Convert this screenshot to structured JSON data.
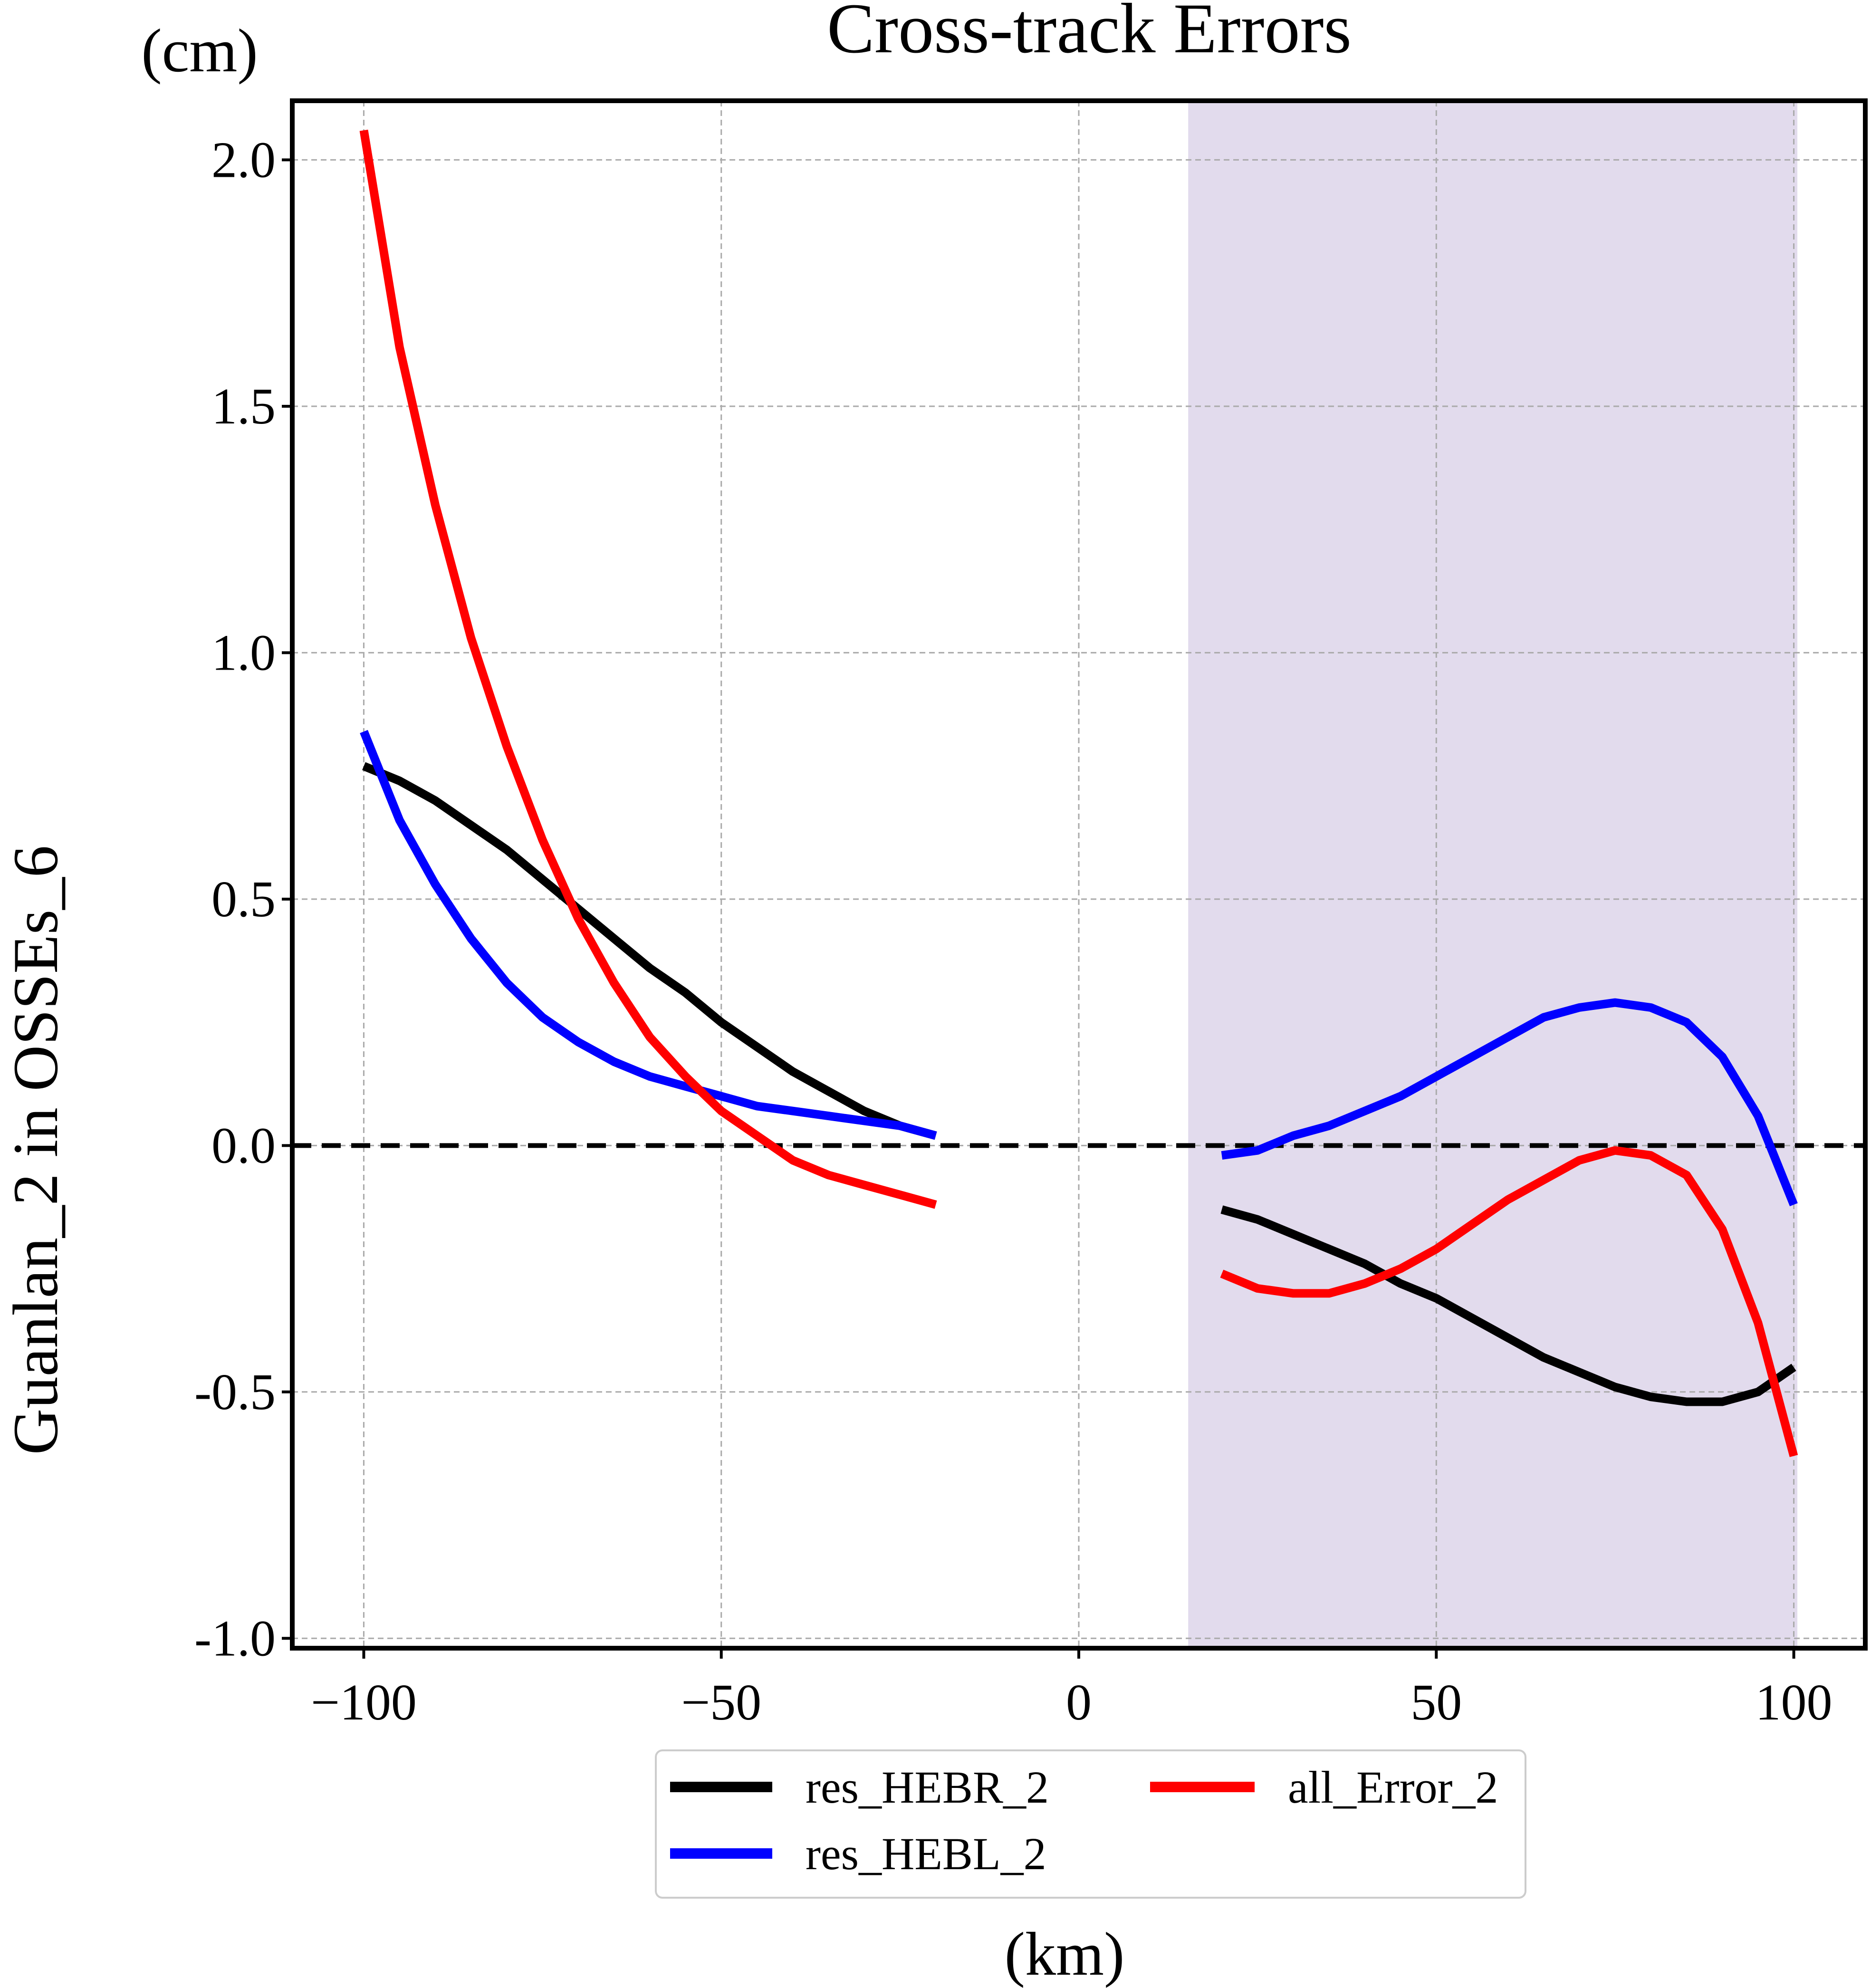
{
  "chart_data": {
    "type": "line",
    "title": "Cross-track Errors",
    "ylabel": "Guanlan_2 in OSSEs_6",
    "y_unit": "(cm)",
    "xlabel": "(km)",
    "xlim": [
      -110,
      110
    ],
    "ylim": [
      -1.02,
      2.12
    ],
    "x_ticks": [
      -100,
      -50,
      0,
      50,
      100
    ],
    "x_tick_labels": [
      "−100",
      "−50",
      "0",
      "50",
      "100"
    ],
    "y_ticks": [
      2.0,
      1.5,
      1.0,
      0.5,
      0.0,
      -0.5,
      -1.0
    ],
    "y_tick_labels": [
      "2.0",
      "1.5",
      "1.0",
      "0.5",
      "0.0",
      "-0.5",
      "-1.0"
    ],
    "grid": true,
    "shaded_region_x": [
      15.3,
      100.5
    ],
    "shaded_color": "#e2dbed",
    "zero_line": {
      "y": 0,
      "style": "dashed",
      "color": "#000000"
    },
    "legend_position": "below plot",
    "series": [
      {
        "name": "res_HEBR_2",
        "color": "#000000",
        "segments": [
          {
            "x": [
              -100,
              -95,
              -90,
              -85,
              -80,
              -75,
              -70,
              -65,
              -60,
              -55,
              -50,
              -45,
              -40,
              -35,
              -30,
              -25,
              -20
            ],
            "y": [
              0.77,
              0.74,
              0.7,
              0.65,
              0.6,
              0.54,
              0.48,
              0.42,
              0.36,
              0.31,
              0.25,
              0.2,
              0.15,
              0.11,
              0.07,
              0.04,
              0.02
            ]
          },
          {
            "x": [
              20,
              25,
              30,
              35,
              40,
              45,
              50,
              55,
              60,
              65,
              70,
              75,
              80,
              85,
              90,
              95,
              100
            ],
            "y": [
              -0.13,
              -0.15,
              -0.18,
              -0.21,
              -0.24,
              -0.28,
              -0.31,
              -0.35,
              -0.39,
              -0.43,
              -0.46,
              -0.49,
              -0.51,
              -0.52,
              -0.52,
              -0.5,
              -0.45
            ]
          }
        ]
      },
      {
        "name": "res_HEBL_2",
        "color": "#0000ff",
        "segments": [
          {
            "x": [
              -100,
              -95,
              -90,
              -85,
              -80,
              -75,
              -70,
              -65,
              -60,
              -55,
              -50,
              -45,
              -40,
              -35,
              -30,
              -25,
              -20
            ],
            "y": [
              0.84,
              0.66,
              0.53,
              0.42,
              0.33,
              0.26,
              0.21,
              0.17,
              0.14,
              0.12,
              0.1,
              0.08,
              0.07,
              0.06,
              0.05,
              0.04,
              0.02
            ]
          },
          {
            "x": [
              20,
              25,
              30,
              35,
              40,
              45,
              50,
              55,
              60,
              65,
              70,
              75,
              80,
              85,
              90,
              95,
              100
            ],
            "y": [
              -0.02,
              -0.01,
              0.02,
              0.04,
              0.07,
              0.1,
              0.14,
              0.18,
              0.22,
              0.26,
              0.28,
              0.29,
              0.28,
              0.25,
              0.18,
              0.06,
              -0.12
            ]
          }
        ]
      },
      {
        "name": "all_Error_2",
        "color": "#ff0000",
        "segments": [
          {
            "x": [
              -100,
              -95,
              -90,
              -85,
              -80,
              -75,
              -70,
              -65,
              -60,
              -55,
              -50,
              -45,
              -40,
              -35,
              -30,
              -25,
              -20
            ],
            "y": [
              2.06,
              1.62,
              1.3,
              1.03,
              0.81,
              0.62,
              0.46,
              0.33,
              0.22,
              0.14,
              0.07,
              0.02,
              -0.03,
              -0.06,
              -0.08,
              -0.1,
              -0.12
            ]
          },
          {
            "x": [
              20,
              25,
              30,
              35,
              40,
              45,
              50,
              55,
              60,
              65,
              70,
              75,
              80,
              85,
              90,
              95,
              100
            ],
            "y": [
              -0.26,
              -0.29,
              -0.3,
              -0.3,
              -0.28,
              -0.25,
              -0.21,
              -0.16,
              -0.11,
              -0.07,
              -0.03,
              -0.01,
              -0.02,
              -0.06,
              -0.17,
              -0.36,
              -0.63
            ]
          }
        ]
      }
    ]
  }
}
